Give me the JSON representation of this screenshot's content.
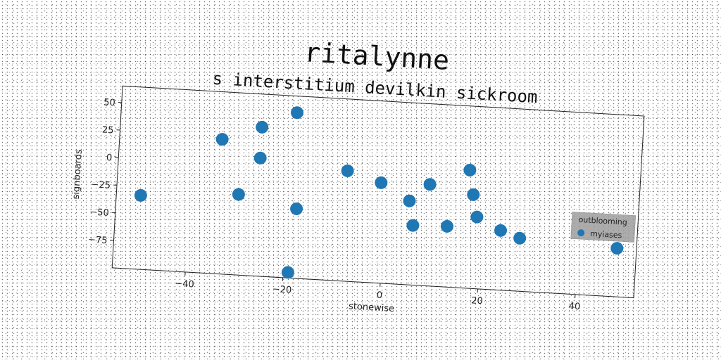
{
  "chart_data": {
    "type": "scatter",
    "title": "ritalynne",
    "subtitle": "s interstitium devilkin sickroom",
    "xlabel": "stonewise",
    "ylabel": "signboards",
    "xlim": [
      -55,
      52
    ],
    "ylim": [
      -100,
      65
    ],
    "xticks": [
      -40,
      -20,
      0,
      20,
      40
    ],
    "yticks": [
      -75,
      -50,
      -25,
      0,
      25,
      50
    ],
    "xtick_labels": [
      "−40",
      "−20",
      "0",
      "20",
      "40"
    ],
    "ytick_labels": [
      "−75",
      "−50",
      "−25",
      "0",
      "25",
      "50"
    ],
    "grid": false,
    "legend_position": "right",
    "legend_title": "outblooming",
    "series": [
      {
        "name": "myiases",
        "color": "#1f77b4",
        "points": [
          {
            "x": -50,
            "y": -33
          },
          {
            "x": -34,
            "y": 22
          },
          {
            "x": -26,
            "y": 35
          },
          {
            "x": -26,
            "y": 7
          },
          {
            "x": -30,
            "y": -27
          },
          {
            "x": -19,
            "y": 50
          },
          {
            "x": -18,
            "y": -37
          },
          {
            "x": -19,
            "y": -95
          },
          {
            "x": -8,
            "y": 0
          },
          {
            "x": -1,
            "y": -9
          },
          {
            "x": 5,
            "y": -24
          },
          {
            "x": 6,
            "y": -46
          },
          {
            "x": 9,
            "y": -8
          },
          {
            "x": 13,
            "y": -45
          },
          {
            "x": 17,
            "y": 7
          },
          {
            "x": 18,
            "y": -15
          },
          {
            "x": 19,
            "y": -35
          },
          {
            "x": 24,
            "y": -46
          },
          {
            "x": 28,
            "y": -52
          },
          {
            "x": 48,
            "y": -56
          }
        ]
      }
    ]
  }
}
